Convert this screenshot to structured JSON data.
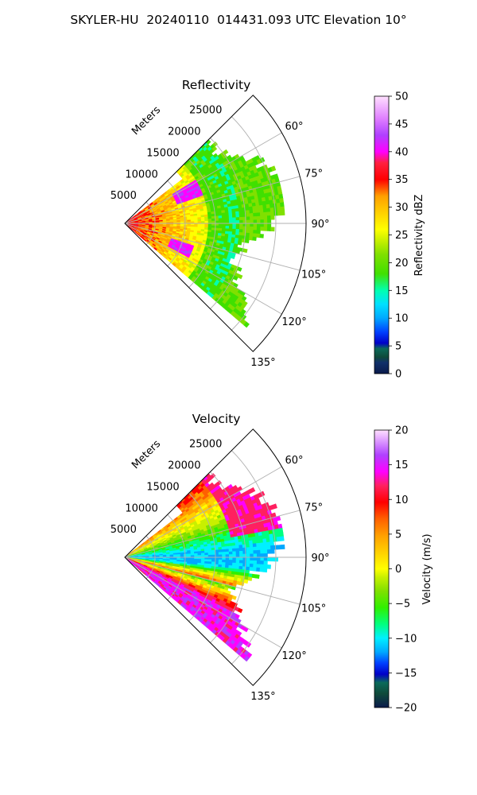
{
  "figure": {
    "title": "SKYLER-HU  20240110  014431.093 UTC Elevation 10°"
  },
  "chart_data": [
    {
      "type": "heatmap",
      "title": "Reflectivity",
      "projection": "polar-sector",
      "azimuth_range_deg": [
        45,
        135
      ],
      "azimuth_ticks": [
        "60°",
        "75°",
        "90°",
        "105°",
        "120°",
        "135°"
      ],
      "range_unit_label": "Meters",
      "range_ticks": [
        "5000",
        "10000",
        "15000",
        "20000",
        "25000"
      ],
      "range_max": 30000,
      "data_extent_m": 25000,
      "colorbar": {
        "label": "Reflectivity dBZ",
        "range": [
          0,
          50
        ],
        "ticks": [
          "0",
          "5",
          "10",
          "15",
          "20",
          "25",
          "30",
          "35",
          "40",
          "45",
          "50"
        ]
      },
      "field": {
        "description_of_pattern": "",
        "dominant_values": [
          {
            "value": 22,
            "region": "outer"
          },
          {
            "value": 33,
            "region": "inner"
          },
          {
            "value": 42,
            "region": "cores"
          }
        ]
      }
    },
    {
      "type": "heatmap",
      "title": "Velocity",
      "projection": "polar-sector",
      "azimuth_range_deg": [
        45,
        135
      ],
      "azimuth_ticks": [
        "60°",
        "75°",
        "90°",
        "105°",
        "120°",
        "135°"
      ],
      "range_unit_label": "Meters",
      "range_ticks": [
        "5000",
        "10000",
        "15000",
        "20000",
        "25000"
      ],
      "range_max": 30000,
      "data_extent_m": 25000,
      "colorbar": {
        "label": "Velocity (m/s)",
        "range": [
          -20,
          20
        ],
        "ticks": [
          "-20",
          "-15",
          "-10",
          "-5",
          "0",
          "5",
          "10",
          "15",
          "20"
        ]
      }
    }
  ],
  "colors": {
    "grid": "#b0b0b0",
    "axis": "#000000"
  }
}
